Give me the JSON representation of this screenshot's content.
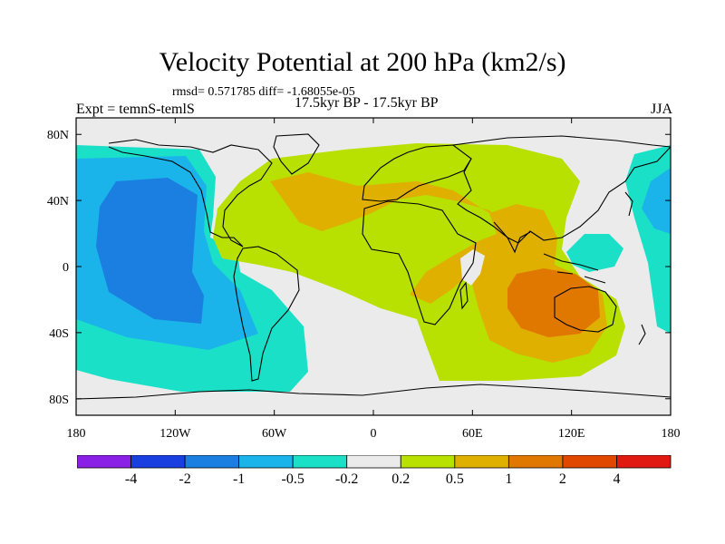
{
  "title": "Velocity Potential at 200 hPa (km2/s)",
  "stats_line": "rmsd= 0.571785 diff= -1.68055e-05",
  "experiment_label": "Expt = temnS-temlS",
  "period_label": "17.5kyr BP - 17.5kyr BP",
  "season_label": "JJA",
  "map": {
    "projection": "cylindrical equidistant",
    "lon_range": [
      -180,
      180
    ],
    "lat_range": [
      -90,
      90
    ],
    "lon_tick_labels": [
      "180",
      "120W",
      "60W",
      "0",
      "60E",
      "120E",
      "180"
    ],
    "lon_tick_values": [
      -180,
      -120,
      -60,
      0,
      60,
      120,
      180
    ],
    "lat_tick_labels": [
      "80N",
      "40N",
      "0",
      "40S",
      "80S"
    ],
    "lat_tick_values": [
      80,
      40,
      0,
      -40,
      -80
    ]
  },
  "colorbar": {
    "levels": [
      "-4",
      "-2",
      "-1",
      "-0.5",
      "-0.2",
      "0.2",
      "0.5",
      "1",
      "2",
      "4"
    ],
    "colors": [
      "#8a1fe6",
      "#1a3fe0",
      "#1a7fe0",
      "#1ab4ea",
      "#1ae0c8",
      "#ebebeb",
      "#b8e000",
      "#e0b000",
      "#e07800",
      "#e04800",
      "#e01a10"
    ]
  },
  "field_colors": {
    "neutral": "#ebebeb",
    "light_positive": "#b8e000",
    "moderate_positive": "#e0b000",
    "strong_positive": "#e07800",
    "light_negative": "#1ae0c8",
    "moderate_negative": "#1ab4ea",
    "strong_negative": "#1a7fe0"
  }
}
